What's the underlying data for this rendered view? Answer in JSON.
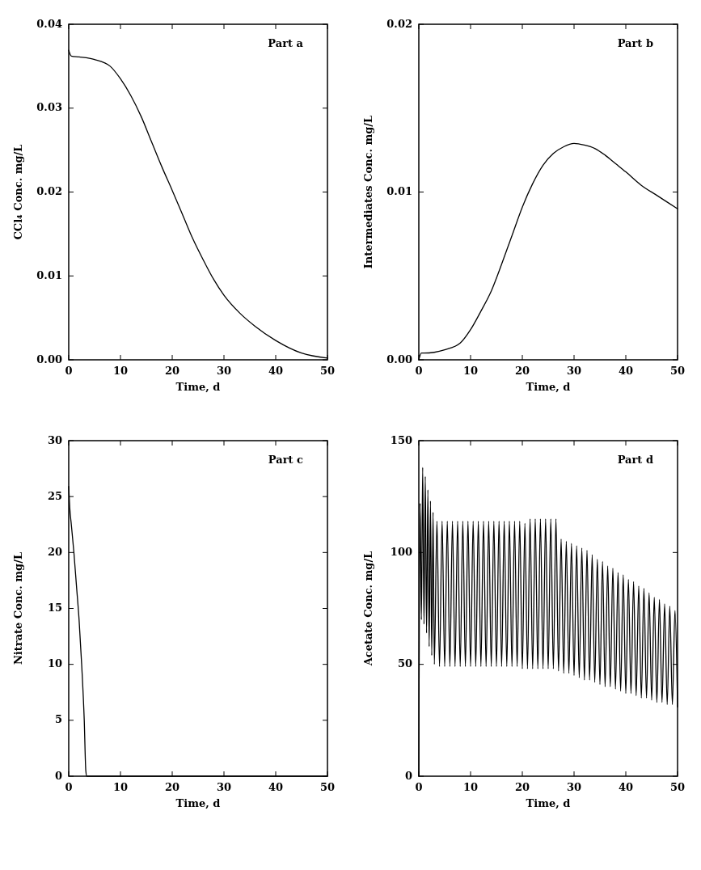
{
  "chart_data": [
    {
      "type": "line",
      "xlabel": "Time, d",
      "ylabel": "CCl₄ Conc. mg/L",
      "annotations": [
        "Part a"
      ],
      "xlim": [
        0,
        50
      ],
      "xticks": [
        0,
        10,
        20,
        30,
        40,
        50
      ],
      "ylim": [
        0,
        0.04
      ],
      "yticks": [
        {
          "value": 0,
          "label": "0.00"
        },
        0.01,
        0.02,
        0.03,
        0.04
      ],
      "x": [
        0,
        0.5,
        2,
        5,
        8,
        10,
        12,
        14,
        16,
        18,
        20,
        22,
        24,
        26,
        28,
        30,
        33,
        36,
        40,
        45,
        50
      ],
      "series": [
        {
          "color": "#000000",
          "values": [
            0.0369,
            0.0362,
            0.0361,
            0.0358,
            0.035,
            0.0335,
            0.0315,
            0.029,
            0.026,
            0.023,
            0.0202,
            0.0173,
            0.0144,
            0.0119,
            0.0096,
            0.0077,
            0.0056,
            0.004,
            0.0023,
            0.0008,
            0.0002
          ]
        }
      ]
    },
    {
      "type": "line",
      "xlabel": "Time, d",
      "ylabel": "Intermediates Conc. mg/L",
      "annotations": [
        "Part b"
      ],
      "xlim": [
        0,
        50
      ],
      "xticks": [
        0,
        10,
        20,
        30,
        40,
        50
      ],
      "ylim": [
        0,
        0.02
      ],
      "yticks": [
        {
          "value": 0,
          "label": "0.00"
        },
        0.01,
        0.02
      ],
      "x": [
        0,
        0.5,
        1,
        5,
        8,
        10,
        12,
        14,
        16,
        18,
        20,
        22,
        24,
        26,
        28,
        30,
        32,
        34,
        36,
        38,
        40,
        43,
        46,
        50
      ],
      "series": [
        {
          "color": "#000000",
          "values": [
            0,
            0.0004,
            0.0004,
            0.0006,
            0.001,
            0.0018,
            0.0029,
            0.0041,
            0.0057,
            0.0074,
            0.0091,
            0.0105,
            0.0116,
            0.0123,
            0.0127,
            0.0129,
            0.0128,
            0.0126,
            0.0122,
            0.0117,
            0.0112,
            0.0104,
            0.0098,
            0.009
          ]
        }
      ]
    },
    {
      "type": "line",
      "xlabel": "Time, d",
      "ylabel": "Nitrate Conc. mg/L",
      "annotations": [
        "Part c"
      ],
      "xlim": [
        0,
        50
      ],
      "xticks": [
        0,
        10,
        20,
        30,
        40,
        50
      ],
      "ylim": [
        0,
        30
      ],
      "yticks": [
        0,
        5,
        10,
        15,
        20,
        25,
        30
      ],
      "x": [
        0,
        0.2,
        0.5,
        1,
        1.5,
        2,
        2.5,
        3,
        3.3,
        3.5,
        10,
        20,
        30,
        40,
        50
      ],
      "series": [
        {
          "color": "#000000",
          "values": [
            25.9,
            24,
            22.5,
            20,
            17,
            14,
            10,
            5,
            0.5,
            0,
            0,
            0,
            0,
            0,
            0
          ]
        }
      ]
    },
    {
      "type": "line",
      "xlabel": "Time, d",
      "ylabel": "Acetate Conc. mg/L",
      "annotations": [
        "Part d"
      ],
      "xlim": [
        0,
        50
      ],
      "xticks": [
        0,
        10,
        20,
        30,
        40,
        50
      ],
      "ylim": [
        0,
        150
      ],
      "yticks": [
        0,
        50,
        100,
        150
      ],
      "x": [
        0,
        0.25,
        0.5,
        0.75,
        1,
        1.25,
        1.5,
        1.75,
        2,
        2.25,
        2.5,
        2.75,
        3,
        3.5,
        4,
        4.5,
        5,
        5.5,
        6,
        6.5,
        7,
        7.5,
        8,
        8.5,
        9,
        9.5,
        10,
        10.5,
        11,
        11.5,
        12,
        12.5,
        13,
        13.5,
        14,
        14.5,
        15,
        15.5,
        16,
        16.5,
        17,
        17.5,
        18,
        18.5,
        19,
        19.5,
        20,
        20.5,
        21,
        21.5,
        22,
        22.5,
        23,
        23.5,
        24,
        24.5,
        25,
        25.5,
        26,
        26.5,
        27,
        27.5,
        28,
        28.5,
        29,
        29.5,
        30,
        30.5,
        31,
        31.5,
        32,
        32.5,
        33,
        33.5,
        34,
        34.5,
        35,
        35.5,
        36,
        36.5,
        37,
        37.5,
        38,
        38.5,
        39,
        39.5,
        40,
        40.5,
        41,
        41.5,
        42,
        42.5,
        43,
        43.5,
        44,
        44.5,
        45,
        45.5,
        46,
        46.5,
        47,
        47.5,
        48,
        48.5,
        49,
        49.5,
        50
      ],
      "series": [
        {
          "color": "#000000",
          "values": [
            0,
            122,
            70,
            138,
            68,
            134,
            64,
            128,
            58,
            123,
            54,
            118,
            50,
            114,
            49,
            114,
            49,
            114,
            49,
            114,
            49,
            114,
            49,
            114,
            49,
            114,
            49,
            114,
            49,
            114,
            49,
            114,
            49,
            114,
            49,
            114,
            49,
            114,
            49,
            114,
            49,
            114,
            49,
            114,
            49,
            114,
            48,
            113,
            48,
            115,
            48,
            115,
            48,
            115,
            48,
            115,
            48,
            115,
            48,
            115,
            47,
            106,
            46,
            105,
            46,
            104,
            45,
            103,
            44,
            102,
            43,
            101,
            43,
            99,
            42,
            97,
            41,
            96,
            40,
            94,
            40,
            93,
            39,
            91,
            38,
            90,
            37,
            88,
            37,
            87,
            36,
            85,
            35,
            84,
            35,
            82,
            34,
            80,
            33,
            79,
            33,
            77,
            32,
            76,
            32,
            74,
            31
          ]
        }
      ]
    }
  ]
}
